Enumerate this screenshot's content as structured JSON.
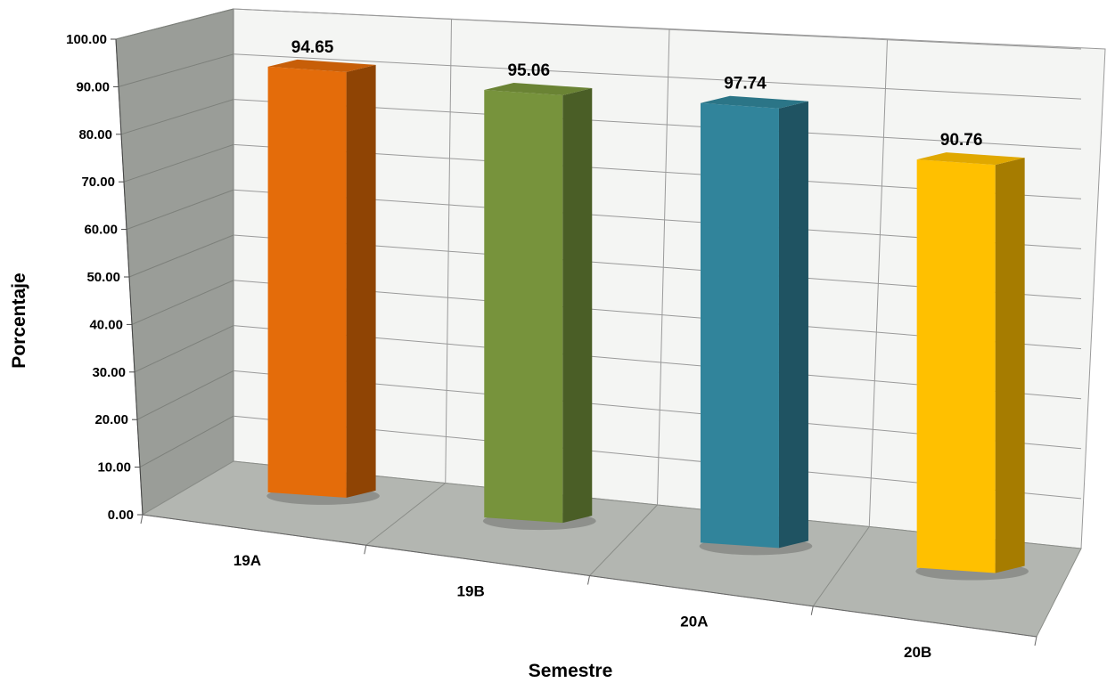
{
  "chart_data": {
    "type": "bar",
    "style": "3d-column",
    "categories": [
      "19A",
      "19B",
      "20A",
      "20B"
    ],
    "values": [
      94.65,
      95.06,
      97.74,
      90.76
    ],
    "value_labels": [
      "94.65",
      "95.06",
      "97.74",
      "90.76"
    ],
    "xlabel": "Semestre",
    "ylabel": "Porcentaje",
    "ylim": [
      0,
      100
    ],
    "yticks": [
      "0.00",
      "10.00",
      "20.00",
      "30.00",
      "40.00",
      "50.00",
      "60.00",
      "70.00",
      "80.00",
      "90.00",
      "100.00"
    ],
    "grid": true,
    "legend": "none",
    "colors": {
      "bars": [
        "#E46C0A",
        "#77933C",
        "#31849B",
        "#FFC000"
      ],
      "bars_side": [
        "#8F4404",
        "#4A5E26",
        "#1F5362",
        "#A67C00"
      ],
      "bars_top": [
        "#C75E08",
        "#6A8334",
        "#2B7587",
        "#E0A800"
      ],
      "side_wall": "#9A9D98",
      "floor": "#B3B6B1",
      "back_wall": "#F4F5F3",
      "grid": "#9A9A9A"
    }
  }
}
